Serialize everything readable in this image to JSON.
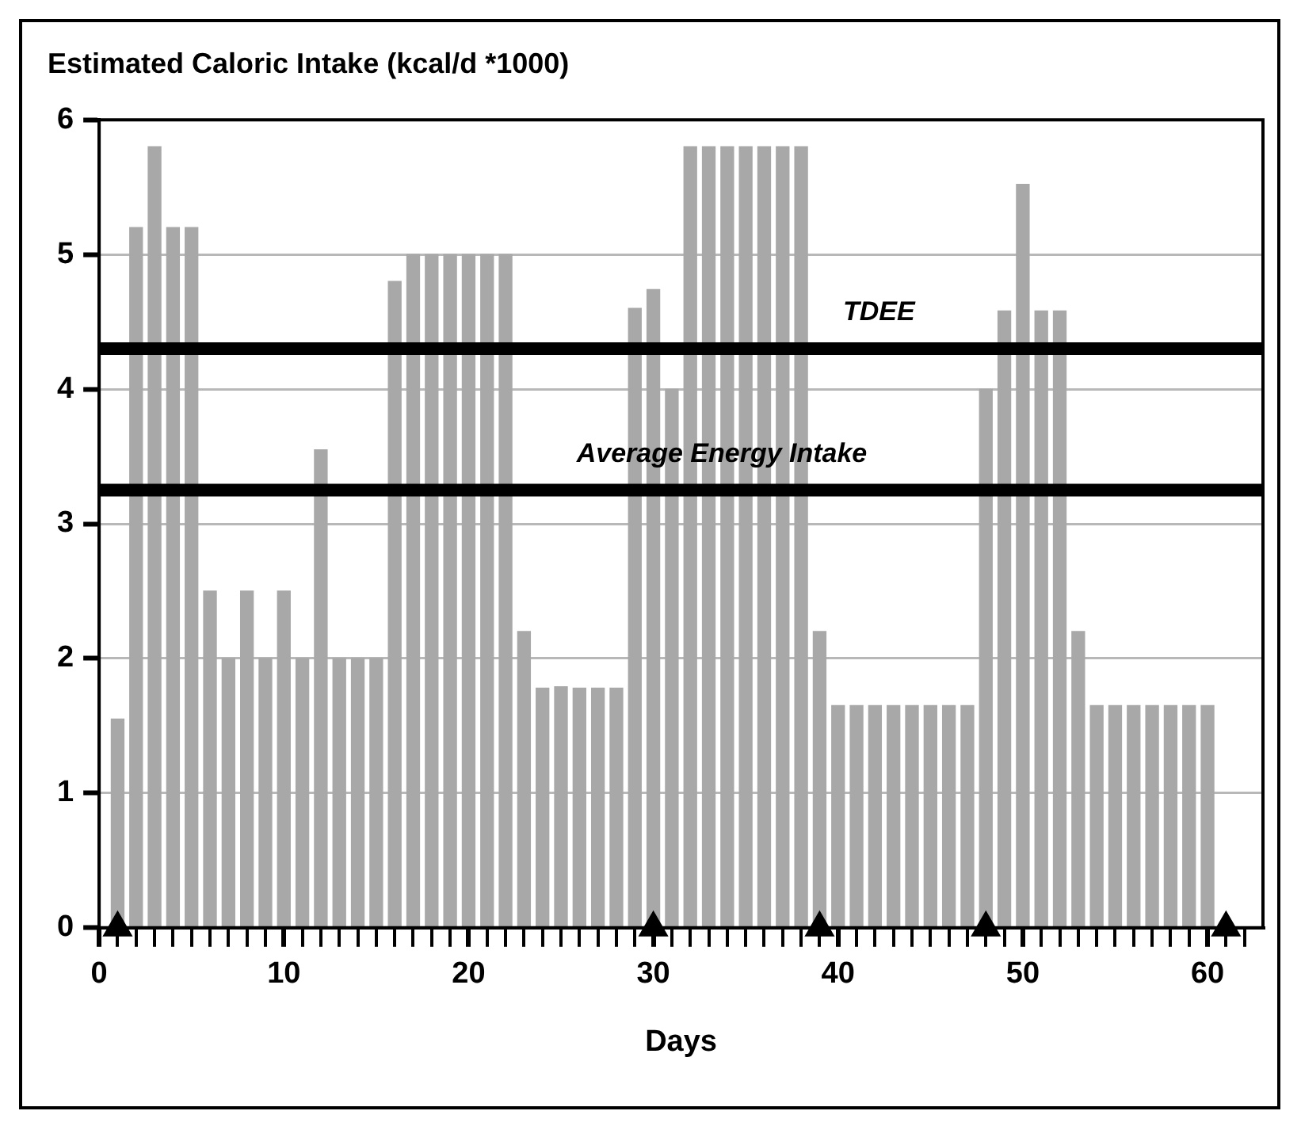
{
  "chart_data": {
    "type": "bar",
    "title": "Estimated Caloric Intake (kcal/d *1000)",
    "xlabel": "Days",
    "x": [
      1,
      2,
      3,
      4,
      5,
      6,
      7,
      8,
      9,
      10,
      11,
      12,
      13,
      14,
      15,
      16,
      17,
      18,
      19,
      20,
      21,
      22,
      23,
      24,
      25,
      26,
      27,
      28,
      29,
      30,
      31,
      32,
      33,
      34,
      35,
      36,
      37,
      38,
      39,
      40,
      41,
      42,
      43,
      44,
      45,
      46,
      47,
      48,
      49,
      50,
      51,
      52,
      53,
      54,
      55,
      56,
      57,
      58,
      59,
      60
    ],
    "series": [
      {
        "color": "#a8a8a8",
        "values": [
          1.55,
          5.2,
          5.8,
          5.2,
          5.2,
          2.5,
          2.0,
          2.5,
          2.0,
          2.5,
          2.0,
          3.55,
          2.0,
          2.0,
          2.0,
          4.8,
          5.0,
          5.0,
          5.0,
          5.0,
          5.0,
          5.0,
          2.2,
          1.78,
          1.79,
          1.78,
          1.78,
          1.78,
          4.6,
          4.74,
          4.0,
          5.8,
          5.8,
          5.8,
          5.8,
          5.8,
          5.8,
          5.8,
          2.2,
          1.65,
          1.65,
          1.65,
          1.65,
          1.65,
          1.65,
          1.65,
          1.65,
          4.0,
          4.58,
          5.52,
          4.58,
          4.58,
          2.2,
          1.65,
          1.65,
          1.65,
          1.65,
          1.65,
          1.65,
          1.65
        ]
      },
      {
        "type": "scatter",
        "color": "#000000",
        "marker": "triangle",
        "x": [
          1,
          30,
          39,
          48,
          61
        ],
        "values": [
          0,
          0,
          0,
          0,
          0
        ]
      }
    ],
    "xlim": [
      0,
      63
    ],
    "xticks": [
      0,
      {
        "value": 1,
        "label": null
      },
      {
        "value": 2,
        "label": null
      },
      {
        "value": 3,
        "label": null
      },
      {
        "value": 4,
        "label": null
      },
      {
        "value": 5,
        "label": null
      },
      {
        "value": 6,
        "label": null
      },
      {
        "value": 7,
        "label": null
      },
      {
        "value": 8,
        "label": null
      },
      {
        "value": 9,
        "label": null
      },
      10,
      {
        "value": 11,
        "label": null
      },
      {
        "value": 12,
        "label": null
      },
      {
        "value": 13,
        "label": null
      },
      {
        "value": 14,
        "label": null
      },
      {
        "value": 15,
        "label": null
      },
      {
        "value": 16,
        "label": null
      },
      {
        "value": 17,
        "label": null
      },
      {
        "value": 18,
        "label": null
      },
      {
        "value": 19,
        "label": null
      },
      20,
      {
        "value": 21,
        "label": null
      },
      {
        "value": 22,
        "label": null
      },
      {
        "value": 23,
        "label": null
      },
      {
        "value": 24,
        "label": null
      },
      {
        "value": 25,
        "label": null
      },
      {
        "value": 26,
        "label": null
      },
      {
        "value": 27,
        "label": null
      },
      {
        "value": 28,
        "label": null
      },
      {
        "value": 29,
        "label": null
      },
      30,
      {
        "value": 31,
        "label": null
      },
      {
        "value": 32,
        "label": null
      },
      {
        "value": 33,
        "label": null
      },
      {
        "value": 34,
        "label": null
      },
      {
        "value": 35,
        "label": null
      },
      {
        "value": 36,
        "label": null
      },
      {
        "value": 37,
        "label": null
      },
      {
        "value": 38,
        "label": null
      },
      {
        "value": 39,
        "label": null
      },
      40,
      {
        "value": 41,
        "label": null
      },
      {
        "value": 42,
        "label": null
      },
      {
        "value": 43,
        "label": null
      },
      {
        "value": 44,
        "label": null
      },
      {
        "value": 45,
        "label": null
      },
      {
        "value": 46,
        "label": null
      },
      {
        "value": 47,
        "label": null
      },
      {
        "value": 48,
        "label": null
      },
      {
        "value": 49,
        "label": null
      },
      50,
      {
        "value": 51,
        "label": null
      },
      {
        "value": 52,
        "label": null
      },
      {
        "value": 53,
        "label": null
      },
      {
        "value": 54,
        "label": null
      },
      {
        "value": 55,
        "label": null
      },
      {
        "value": 56,
        "label": null
      },
      {
        "value": 57,
        "label": null
      },
      {
        "value": 58,
        "label": null
      },
      {
        "value": 59,
        "label": null
      },
      60,
      {
        "value": 61,
        "label": null
      },
      {
        "value": 62,
        "label": null
      }
    ],
    "ylim": [
      0,
      6
    ],
    "yticks": [
      0,
      1,
      2,
      3,
      4,
      5,
      6
    ],
    "grid": "y",
    "legend": false,
    "ref_lines": [
      {
        "axis": "y",
        "value": 4.3,
        "label": "TDEE",
        "color": "#000000"
      },
      {
        "axis": "y",
        "value": 3.25,
        "label": "Average Energy Intake",
        "color": "#000000"
      }
    ]
  }
}
